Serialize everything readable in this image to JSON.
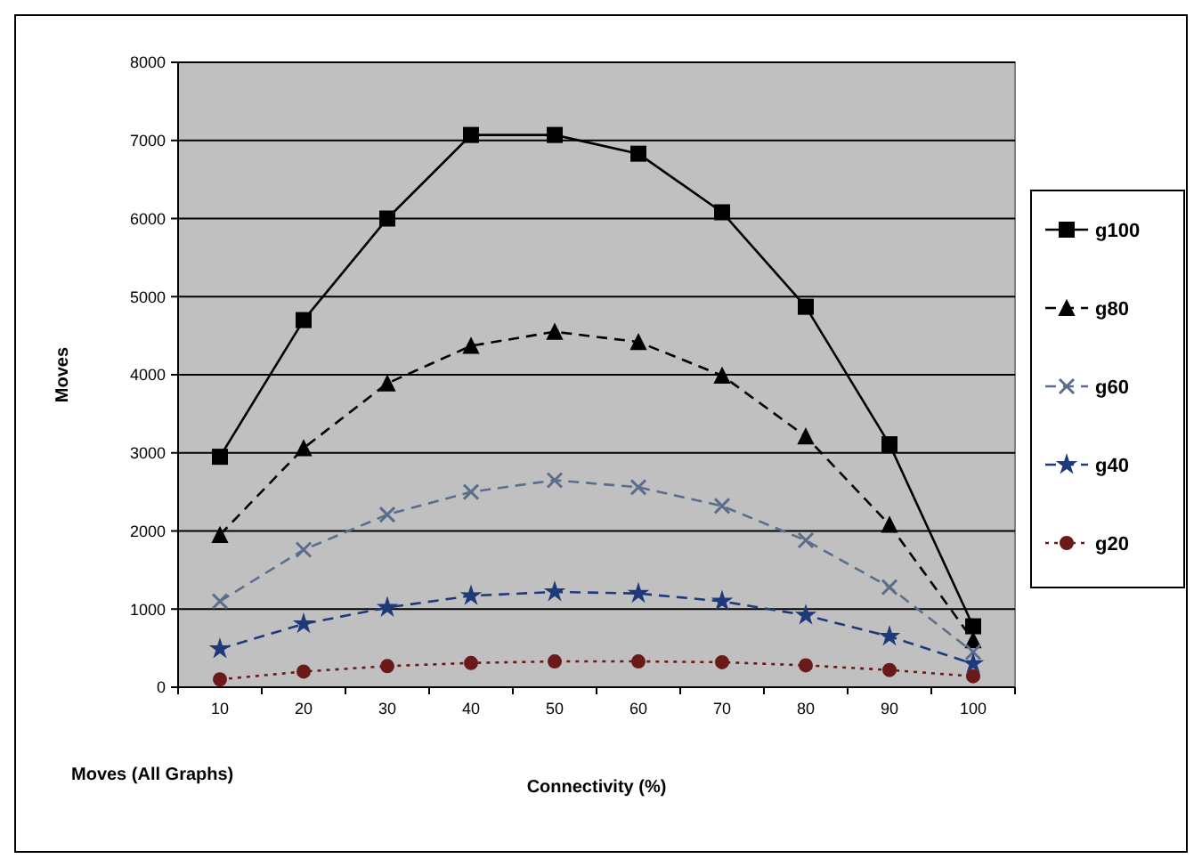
{
  "chart_data": {
    "type": "line",
    "title": "Moves (All Graphs)",
    "xlabel": "Connectivity (%)",
    "ylabel": "Moves",
    "categories": [
      "10",
      "20",
      "30",
      "40",
      "50",
      "60",
      "70",
      "80",
      "90",
      "100"
    ],
    "series": [
      {
        "name": "g100",
        "color": "#000000",
        "marker": "square",
        "line_style": "solid",
        "values": [
          2950,
          4700,
          6000,
          7070,
          7070,
          6830,
          6080,
          4870,
          3110,
          780
        ]
      },
      {
        "name": "g80",
        "color": "#000000",
        "marker": "triangle",
        "line_style": "dashed",
        "values": [
          1950,
          3060,
          3890,
          4370,
          4550,
          4420,
          3990,
          3210,
          2080,
          600
        ]
      },
      {
        "name": "g60",
        "color": "#5a6e8c",
        "marker": "cross",
        "line_style": "dashed",
        "values": [
          1100,
          1760,
          2210,
          2500,
          2650,
          2560,
          2320,
          1880,
          1280,
          450
        ]
      },
      {
        "name": "g40",
        "color": "#1f3a7a",
        "marker": "star",
        "line_style": "dashed",
        "values": [
          490,
          810,
          1020,
          1170,
          1220,
          1200,
          1100,
          920,
          650,
          300
        ]
      },
      {
        "name": "g20",
        "color": "#6b1a1a",
        "marker": "circle",
        "line_style": "dotted",
        "values": [
          100,
          200,
          270,
          310,
          330,
          330,
          320,
          280,
          220,
          140
        ]
      }
    ],
    "ylim": [
      0,
      8000
    ],
    "yticks": [
      0,
      1000,
      2000,
      3000,
      4000,
      5000,
      6000,
      7000,
      8000
    ],
    "grid": "y",
    "legend": "right"
  }
}
